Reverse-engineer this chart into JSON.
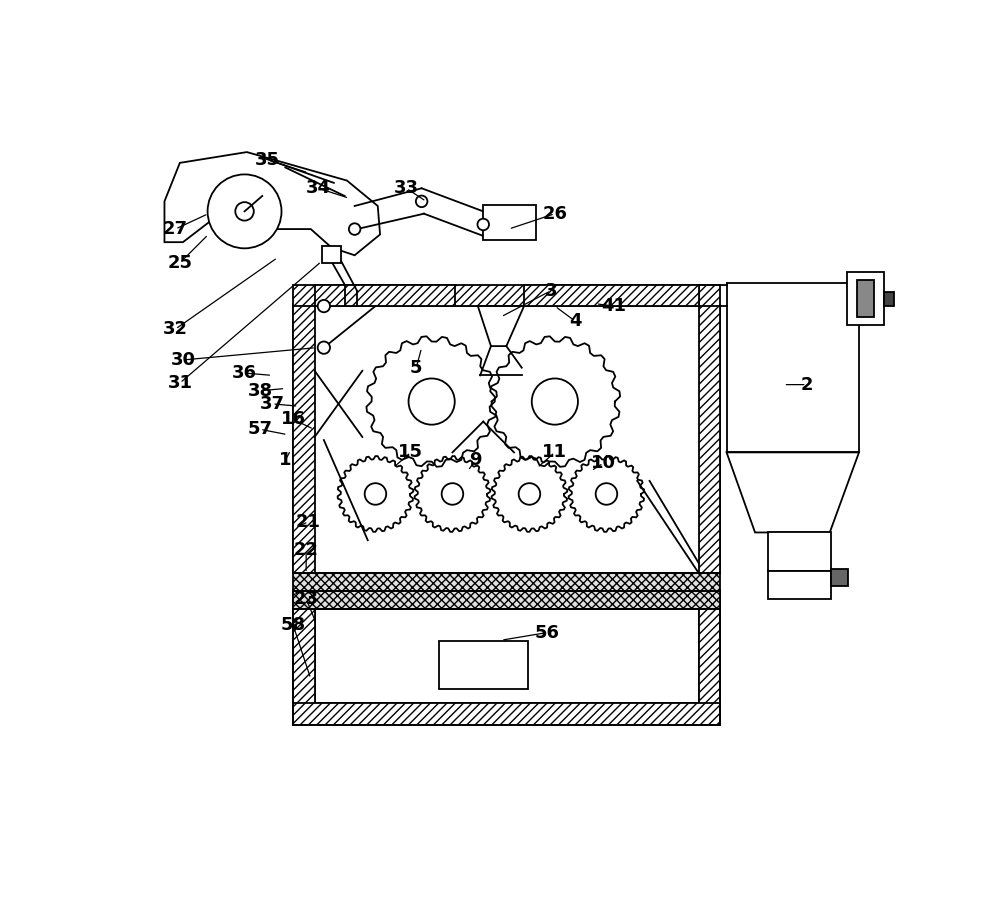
{
  "bg_color": "#ffffff",
  "lc": "#000000",
  "lw": 1.3,
  "fig_w": 10.0,
  "fig_h": 9.08,
  "labels": [
    [
      "1",
      [
        2.05,
        4.52
      ]
    ],
    [
      "2",
      [
        8.82,
        5.5
      ]
    ],
    [
      "3",
      [
        5.5,
        6.72
      ]
    ],
    [
      "4",
      [
        5.82,
        6.32
      ]
    ],
    [
      "5",
      [
        3.75,
        5.72
      ]
    ],
    [
      "9",
      [
        4.52,
        4.52
      ]
    ],
    [
      "10",
      [
        6.18,
        4.48
      ]
    ],
    [
      "11",
      [
        5.55,
        4.62
      ]
    ],
    [
      "15",
      [
        3.68,
        4.62
      ]
    ],
    [
      "16",
      [
        2.15,
        5.05
      ]
    ],
    [
      "21",
      [
        2.35,
        3.72
      ]
    ],
    [
      "22",
      [
        2.32,
        3.35
      ]
    ],
    [
      "23",
      [
        2.32,
        2.72
      ]
    ],
    [
      "25",
      [
        0.68,
        7.08
      ]
    ],
    [
      "26",
      [
        5.55,
        7.72
      ]
    ],
    [
      "27",
      [
        0.62,
        7.52
      ]
    ],
    [
      "30",
      [
        0.72,
        5.82
      ]
    ],
    [
      "31",
      [
        0.68,
        5.52
      ]
    ],
    [
      "32",
      [
        0.62,
        6.22
      ]
    ],
    [
      "33",
      [
        3.62,
        8.05
      ]
    ],
    [
      "34",
      [
        2.48,
        8.05
      ]
    ],
    [
      "35",
      [
        1.82,
        8.42
      ]
    ],
    [
      "36",
      [
        1.52,
        5.65
      ]
    ],
    [
      "37",
      [
        1.88,
        5.25
      ]
    ],
    [
      "38",
      [
        1.72,
        5.42
      ]
    ],
    [
      "41",
      [
        6.32,
        6.52
      ]
    ],
    [
      "56",
      [
        5.45,
        2.28
      ]
    ],
    [
      "57",
      [
        1.72,
        4.92
      ]
    ],
    [
      "58",
      [
        2.15,
        2.38
      ]
    ]
  ]
}
